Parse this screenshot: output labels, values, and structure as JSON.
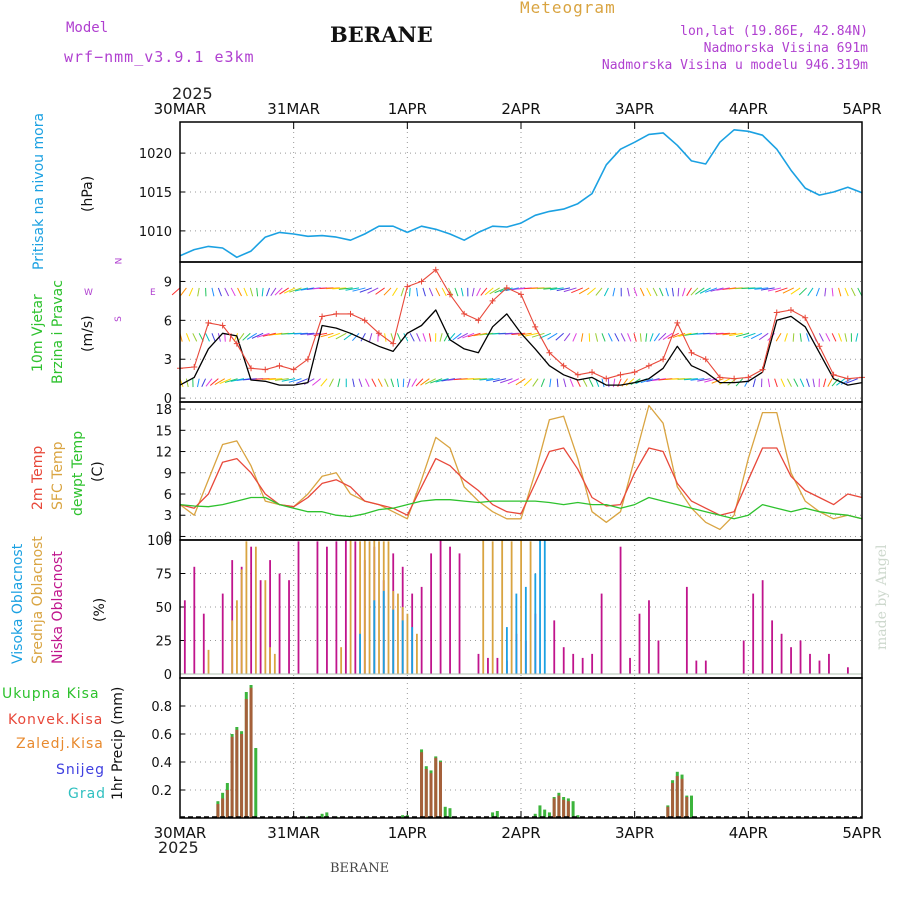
{
  "header": {
    "model_label": "Model",
    "model_name": "wrf−nmm_v3.9.1 e3km",
    "station": "BERANE",
    "product": "Meteogram",
    "coords": "lon,lat (19.86E, 42.84N)",
    "elevation": "Nadmorska Visina 691m",
    "model_elevation": "Nadmorska Visina u modelu 946.319m",
    "year_top": "2025",
    "year_bottom": "2025",
    "footer_station": "BERANE",
    "watermark": "made by Angel"
  },
  "colors": {
    "pressure": "#1ba1e2",
    "wind_speed": "#000000",
    "gust": "#e8483a",
    "t2m": "#e8483a",
    "sfc": "#d9a441",
    "dewpt": "#2ec22e",
    "high_cloud": "#1ba1e2",
    "mid_cloud": "#d9a441",
    "low_cloud": "#c0148c",
    "precip_total": "#3cb43c",
    "precip_conv": "#c8443a",
    "label_green": "#2ec22e",
    "label_red": "#e8483a",
    "label_orange": "#e88a2e",
    "label_blue": "#4040e0",
    "label_cyan": "#30c0c0",
    "label_purple": "#b040d0"
  },
  "time_axis": {
    "labels": [
      "30MAR",
      "31MAR",
      "1APR",
      "2APR",
      "3APR",
      "4APR",
      "5APR"
    ],
    "range_hours": [
      0,
      144
    ]
  },
  "panel_labels": {
    "pressure": {
      "title": "Pritisak na nivou mora",
      "unit": "(hPa)"
    },
    "wind": {
      "line1": "10m Vjetar",
      "line2": "Brzina i Pravac",
      "unit": "(m/s)",
      "compass_n": "N",
      "compass_s": "S",
      "compass_w": "W",
      "compass_e": "E"
    },
    "temp": {
      "line1": "2m Temp",
      "line2": "SFC Temp",
      "line3": "dewpt Temp",
      "unit": "(C)"
    },
    "cloud": {
      "line1": "Visoka Oblacnost",
      "line2": "Srednja Oblacnost",
      "line3": "Niska Oblacnost",
      "unit": "(%)"
    },
    "precip": {
      "total": "Ukupna Kisa",
      "conv": "Konvek.Kisa",
      "frozen": "Zaledj.Kisa",
      "snow": "Snijeg",
      "hail": "Grad",
      "unit": "1hr Precip (mm)"
    }
  },
  "chart_data": [
    {
      "type": "line",
      "title": "Pritisak na nivou mora",
      "ylabel": "(hPa)",
      "ylim": [
        1006,
        1024
      ],
      "yticks": [
        1010,
        1015,
        1020
      ],
      "x": [
        0,
        3,
        6,
        9,
        12,
        15,
        18,
        21,
        24,
        27,
        30,
        33,
        36,
        39,
        42,
        45,
        48,
        51,
        54,
        57,
        60,
        63,
        66,
        69,
        72,
        75,
        78,
        81,
        84,
        87,
        90,
        93,
        96,
        99,
        102,
        105,
        108,
        111,
        114,
        117,
        120,
        123,
        126,
        129,
        132,
        135,
        138,
        141,
        144
      ],
      "series": [
        {
          "name": "MSLP",
          "values": [
            1006.8,
            1007.6,
            1008.0,
            1007.8,
            1006.6,
            1007.4,
            1009.2,
            1009.8,
            1009.6,
            1009.3,
            1009.4,
            1009.2,
            1008.8,
            1009.6,
            1010.6,
            1010.6,
            1009.8,
            1010.6,
            1010.2,
            1009.6,
            1008.8,
            1009.8,
            1010.6,
            1010.5,
            1011.0,
            1012.0,
            1012.5,
            1012.8,
            1013.5,
            1014.8,
            1018.5,
            1020.5,
            1021.4,
            1022.4,
            1022.6,
            1021.0,
            1019.0,
            1018.6,
            1021.4,
            1023.0,
            1022.8,
            1022.3,
            1020.5,
            1017.8,
            1015.5,
            1014.6,
            1015.0,
            1015.6,
            1014.9
          ]
        }
      ]
    },
    {
      "type": "line",
      "title": "10m Vjetar Brzina i Pravac",
      "ylabel": "(m/s)",
      "ylim": [
        -0.3,
        10.5
      ],
      "yticks": [
        0,
        3,
        6,
        9
      ],
      "x": [
        0,
        3,
        6,
        9,
        12,
        15,
        18,
        21,
        24,
        27,
        30,
        33,
        36,
        39,
        42,
        45,
        48,
        51,
        54,
        57,
        60,
        63,
        66,
        69,
        72,
        75,
        78,
        81,
        84,
        87,
        90,
        93,
        96,
        99,
        102,
        105,
        108,
        111,
        114,
        117,
        120,
        123,
        126,
        129,
        132,
        135,
        138,
        141,
        144
      ],
      "series": [
        {
          "name": "speed",
          "values": [
            1.0,
            1.6,
            3.8,
            5.0,
            4.8,
            1.4,
            1.3,
            1.0,
            1.0,
            1.2,
            5.6,
            5.4,
            5.0,
            4.5,
            4.0,
            3.6,
            5.0,
            5.6,
            6.8,
            4.5,
            3.8,
            3.5,
            5.5,
            6.5,
            5.0,
            3.8,
            2.5,
            1.8,
            1.4,
            1.6,
            1.0,
            1.0,
            1.2,
            1.5,
            2.3,
            4.0,
            2.5,
            2.0,
            1.2,
            1.2,
            1.3,
            2.0,
            6.0,
            6.3,
            5.5,
            3.5,
            1.5,
            1.0,
            1.2
          ]
        },
        {
          "name": "gust",
          "values": [
            2.3,
            2.4,
            5.8,
            5.6,
            4.2,
            2.3,
            2.2,
            2.5,
            2.2,
            3.0,
            6.3,
            6.5,
            6.5,
            6.0,
            5.0,
            4.2,
            8.6,
            9.0,
            9.9,
            8.0,
            6.5,
            6.0,
            7.5,
            8.5,
            8.0,
            5.5,
            3.5,
            2.5,
            1.8,
            2.0,
            1.5,
            1.8,
            2.0,
            2.5,
            3.0,
            5.8,
            3.5,
            3.0,
            1.6,
            1.5,
            1.6,
            2.2,
            6.6,
            6.8,
            6.2,
            4.0,
            1.8,
            1.5,
            1.6
          ]
        }
      ]
    },
    {
      "type": "line",
      "title": "2m Temp / SFC Temp / dewpt Temp",
      "ylabel": "(C)",
      "ylim": [
        -0.5,
        19
      ],
      "yticks": [
        0,
        3,
        6,
        9,
        12,
        15,
        18
      ],
      "x": [
        0,
        3,
        6,
        9,
        12,
        15,
        18,
        21,
        24,
        27,
        30,
        33,
        36,
        39,
        42,
        45,
        48,
        51,
        54,
        57,
        60,
        63,
        66,
        69,
        72,
        75,
        78,
        81,
        84,
        87,
        90,
        93,
        96,
        99,
        102,
        105,
        108,
        111,
        114,
        117,
        120,
        123,
        126,
        129,
        132,
        135,
        138,
        141,
        144
      ],
      "series": [
        {
          "name": "2m Temp",
          "values": [
            4.5,
            4.0,
            6.0,
            10.5,
            11.0,
            9.0,
            6.0,
            4.5,
            4.2,
            5.5,
            7.5,
            8.0,
            7.0,
            5.0,
            4.5,
            4.0,
            3.0,
            7.0,
            11.0,
            10.0,
            8.0,
            6.5,
            4.5,
            3.5,
            3.2,
            7.5,
            12.0,
            12.5,
            9.5,
            5.5,
            4.3,
            4.5,
            9.0,
            12.5,
            12.0,
            7.5,
            5.0,
            4.0,
            3.0,
            3.5,
            8.0,
            12.5,
            12.5,
            8.5,
            6.5,
            5.5,
            4.5,
            6.0,
            5.5
          ]
        },
        {
          "name": "SFC Temp",
          "values": [
            4.5,
            3.0,
            8.0,
            13.0,
            13.5,
            10.0,
            5.0,
            4.5,
            4.2,
            6.0,
            8.5,
            9.0,
            6.0,
            5.0,
            4.5,
            3.5,
            2.5,
            8.0,
            14.0,
            12.5,
            7.0,
            5.0,
            3.5,
            2.5,
            2.5,
            9.0,
            16.5,
            17.0,
            11.0,
            3.5,
            2.0,
            3.5,
            11.0,
            18.5,
            16.0,
            7.0,
            4.0,
            2.0,
            1.0,
            3.0,
            11.0,
            17.5,
            17.5,
            9.0,
            5.0,
            3.5,
            2.5,
            3.0,
            2.5
          ]
        },
        {
          "name": "dewpt Temp",
          "values": [
            4.5,
            4.3,
            4.2,
            4.5,
            5.0,
            5.5,
            5.5,
            4.5,
            4.0,
            3.5,
            3.5,
            3.0,
            2.8,
            3.2,
            3.8,
            4.0,
            4.5,
            5.0,
            5.2,
            5.2,
            5.0,
            4.8,
            5.0,
            5.0,
            5.0,
            5.0,
            4.8,
            4.5,
            4.8,
            4.5,
            4.5,
            4.0,
            4.5,
            5.5,
            5.0,
            4.5,
            4.0,
            3.5,
            3.0,
            2.5,
            3.0,
            4.5,
            4.0,
            3.5,
            4.0,
            3.5,
            3.2,
            3.0,
            2.5
          ]
        }
      ]
    },
    {
      "type": "bar",
      "title": "Visoka / Srednja / Niska Oblacnost",
      "ylabel": "(%)",
      "ylim": [
        -3,
        100
      ],
      "yticks": [
        0,
        25,
        50,
        75,
        100
      ],
      "series": [
        {
          "name": "Niska",
          "x": [
            1,
            3,
            5,
            7,
            9,
            11,
            13,
            15,
            17,
            19,
            21,
            23,
            25,
            27,
            29,
            31,
            33,
            35,
            37,
            39,
            41,
            43,
            45,
            47,
            49,
            51,
            53,
            55,
            57,
            59,
            61,
            63,
            65,
            67,
            69,
            71,
            73,
            75,
            77,
            79,
            81,
            83,
            85,
            87,
            89,
            91,
            93,
            95,
            97,
            99,
            101,
            103,
            105,
            107,
            109,
            111,
            113,
            115,
            117,
            119,
            121,
            123,
            125,
            127,
            129,
            131,
            133,
            135,
            137,
            139,
            141,
            143
          ],
          "values": [
            55,
            80,
            45,
            0,
            60,
            85,
            80,
            95,
            70,
            85,
            75,
            70,
            99,
            0,
            99,
            95,
            99,
            100,
            99,
            85,
            95,
            70,
            90,
            80,
            60,
            65,
            90,
            100,
            95,
            90,
            0,
            15,
            12,
            12,
            10,
            30,
            25,
            45,
            0,
            40,
            20,
            15,
            12,
            15,
            60,
            0,
            95,
            12,
            45,
            55,
            25,
            0,
            0,
            65,
            10,
            10,
            0,
            0,
            0,
            25,
            60,
            70,
            40,
            30,
            20,
            25,
            15,
            10,
            15,
            0,
            5,
            0
          ]
        },
        {
          "name": "Srednja",
          "x": [
            6,
            9,
            11,
            12,
            13,
            14,
            16,
            18,
            19,
            20,
            22,
            24,
            25,
            26,
            27,
            28,
            29,
            30,
            32,
            34,
            36,
            38,
            39,
            40,
            41,
            42,
            43,
            44,
            45,
            46,
            47,
            48,
            50,
            52,
            54,
            57,
            59,
            61,
            64,
            66,
            68,
            70,
            72,
            74
          ],
          "values": [
            18,
            0,
            40,
            55,
            78,
            99,
            95,
            70,
            20,
            15,
            0,
            0,
            0,
            0,
            0,
            0,
            0,
            0,
            0,
            20,
            100,
            99,
            100,
            99,
            100,
            99,
            99,
            99,
            62,
            60,
            50,
            45,
            30,
            0,
            0,
            0,
            0,
            0,
            100,
            99,
            100,
            99,
            100,
            99
          ]
        },
        {
          "name": "Visoka",
          "x": [
            38,
            41,
            43,
            45,
            47,
            49,
            69,
            71,
            73,
            75,
            76,
            77
          ],
          "values": [
            30,
            55,
            62,
            48,
            40,
            35,
            35,
            60,
            65,
            75,
            100,
            100
          ]
        }
      ]
    },
    {
      "type": "bar",
      "title": "1hr Precip",
      "ylabel": "(mm)",
      "ylim": [
        0,
        1.0
      ],
      "yticks": [
        0.2,
        0.4,
        0.6,
        0.8
      ],
      "x": [
        8,
        9,
        10,
        11,
        12,
        13,
        14,
        15,
        16,
        24,
        27,
        30,
        31,
        33,
        47,
        48,
        51,
        52,
        53,
        54,
        55,
        56,
        57,
        58,
        59,
        66,
        67,
        75,
        76,
        77,
        78,
        79,
        80,
        81,
        82,
        83,
        84,
        103,
        104,
        105,
        106,
        107,
        108
      ],
      "series": [
        {
          "name": "Ukupna Kisa",
          "values": [
            0.12,
            0.18,
            0.25,
            0.6,
            0.65,
            0.62,
            0.9,
            0.95,
            0.5,
            0.01,
            0.01,
            0.03,
            0.04,
            0.01,
            0.02,
            0.02,
            0.49,
            0.37,
            0.34,
            0.44,
            0.41,
            0.08,
            0.07,
            0.0,
            0.0,
            0.04,
            0.05,
            0.03,
            0.09,
            0.06,
            0.04,
            0.15,
            0.18,
            0.15,
            0.14,
            0.12,
            0.02,
            0.09,
            0.27,
            0.33,
            0.31,
            0.16,
            0.16
          ]
        },
        {
          "name": "Konvek.Kisa",
          "values": [
            0.1,
            0.14,
            0.2,
            0.58,
            0.63,
            0.6,
            0.85,
            0.93,
            0.0,
            0.0,
            0.0,
            0.0,
            0.0,
            0.0,
            0.0,
            0.0,
            0.47,
            0.35,
            0.32,
            0.43,
            0.4,
            0.0,
            0.0,
            0.0,
            0.0,
            0.0,
            0.0,
            0.0,
            0.0,
            0.0,
            0.0,
            0.14,
            0.16,
            0.13,
            0.12,
            0.0,
            0.0,
            0.08,
            0.25,
            0.3,
            0.28,
            0.15,
            0.0
          ]
        }
      ]
    }
  ]
}
